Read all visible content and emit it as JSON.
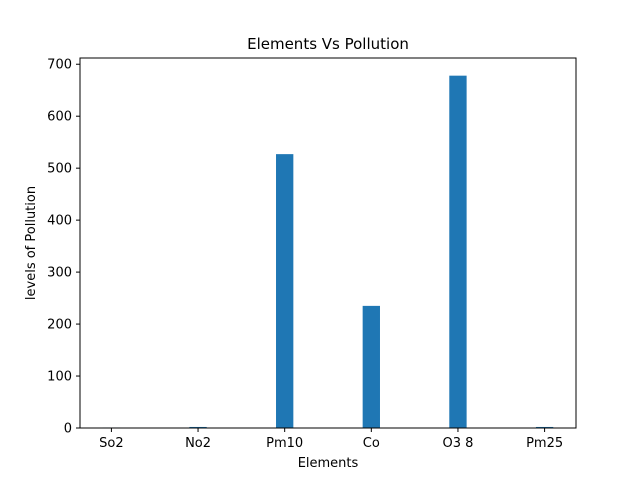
{
  "chart_data": {
    "type": "bar",
    "title": "Elements Vs Pollution",
    "xlabel": "Elements",
    "ylabel": "levels of Pollution",
    "categories": [
      "So2",
      "No2",
      "Pm10",
      "Co",
      "O3 8",
      "Pm25"
    ],
    "values": [
      1,
      2,
      527,
      235,
      678,
      2
    ],
    "ylim": [
      0,
      712
    ],
    "yticks": [
      0,
      100,
      200,
      300,
      400,
      500,
      600,
      700
    ],
    "bar_color": "#1f77b4",
    "grid": false,
    "legend": "none"
  }
}
